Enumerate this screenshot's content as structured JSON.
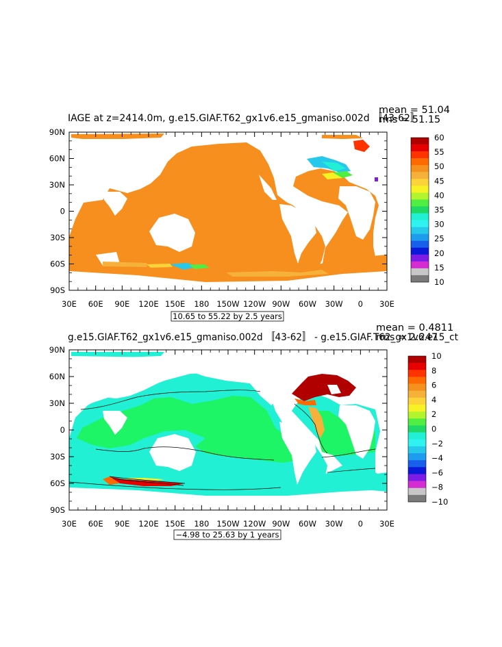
{
  "chart_data": [
    {
      "type": "heatmap",
      "title": "IAGE at z=2414.0m, g.e15.GIAF.T62_gx1v6.e15_gmaniso.002d 〚43-62〛",
      "stats": {
        "mean": "mean = 51.04",
        "rms": "rms = 51.15"
      },
      "x_ticks": [
        "30E",
        "60E",
        "90E",
        "120E",
        "150E",
        "180",
        "150W",
        "120W",
        "90W",
        "60W",
        "30W",
        "0",
        "30E"
      ],
      "y_ticks": [
        "90N",
        "60N",
        "30N",
        "0",
        "30S",
        "60S",
        "90S"
      ],
      "xlim": [
        30,
        390
      ],
      "ylim": [
        -90,
        90
      ],
      "contour_info": "10.65 to 55.22 by 2.5 years",
      "colorbar": {
        "labels": [
          "60",
          "55",
          "50",
          "45",
          "40",
          "35",
          "30",
          "25",
          "20",
          "15",
          "10"
        ],
        "colors": [
          "#b10000",
          "#e60000",
          "#ff3300",
          "#ff6a00",
          "#f5921e",
          "#f6b13b",
          "#fcd43a",
          "#f7f224",
          "#b3f52d",
          "#50ed42",
          "#1ed966",
          "#21f0d4",
          "#2ef3f0",
          "#26c9ea",
          "#1e9ced",
          "#1860eb",
          "#0a18d7",
          "#7c1ce6",
          "#d42cd2",
          "#c7c7c7",
          "#7a7a7a"
        ]
      },
      "dominant_value": 50
    },
    {
      "type": "heatmap",
      "title": "g.e15.GIAF.T62_gx1v6.e15_gmaniso.002d 〚43-62〛 - g.e15.GIAF.T62_gx1v6.e15_ct",
      "stats": {
        "mean": "mean = 0.4811",
        "rms": "rms = 2.247"
      },
      "x_ticks": [
        "30E",
        "60E",
        "90E",
        "120E",
        "150E",
        "180",
        "150W",
        "120W",
        "90W",
        "60W",
        "30W",
        "0",
        "30E"
      ],
      "y_ticks": [
        "90N",
        "60N",
        "30N",
        "0",
        "30S",
        "60S",
        "90S"
      ],
      "xlim": [
        30,
        390
      ],
      "ylim": [
        -90,
        90
      ],
      "contour_info": "−4.98 to 25.63 by 1 years",
      "colorbar": {
        "labels": [
          "10",
          "8",
          "6",
          "4",
          "2",
          "0",
          "−2",
          "−4",
          "−6",
          "−8",
          "−10"
        ],
        "colors": [
          "#b10000",
          "#e60000",
          "#ff3300",
          "#ff6a00",
          "#f5921e",
          "#f6b13b",
          "#fcd43a",
          "#f7f224",
          "#b3f52d",
          "#50ed42",
          "#1ed966",
          "#21f0d4",
          "#2ef3f0",
          "#26c9ea",
          "#1e9ced",
          "#1860eb",
          "#0a18d7",
          "#7c1ce6",
          "#d42cd2",
          "#c7c7c7",
          "#7a7a7a"
        ]
      },
      "dominant_value": 0
    }
  ]
}
